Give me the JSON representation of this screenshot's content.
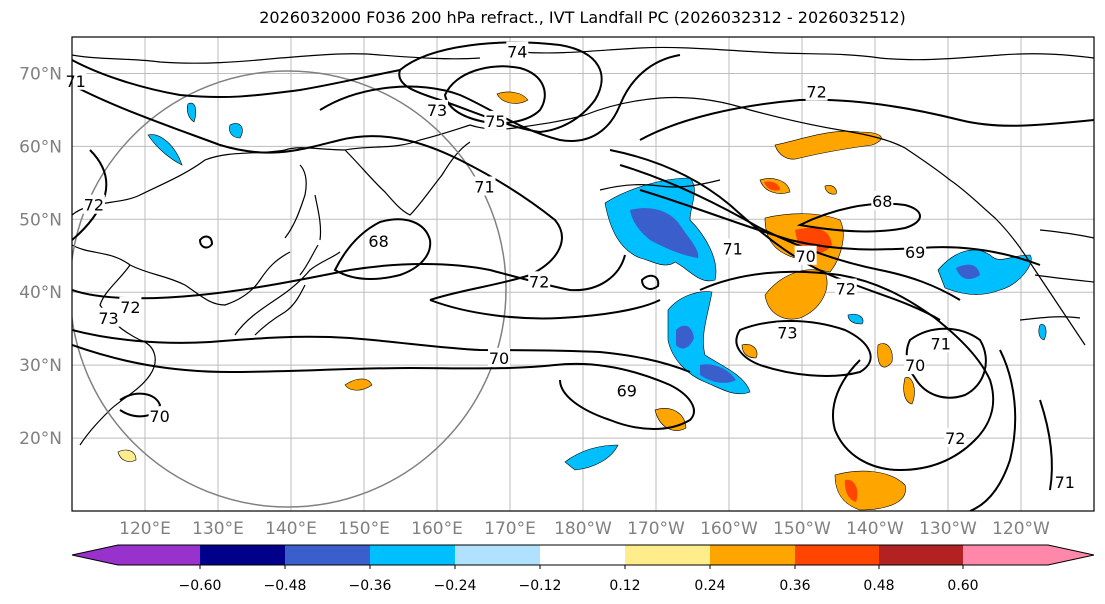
{
  "title": "2026032000 F036 200 hPa refract., IVT Landfall PC (2026032312 - 2026032512)",
  "map": {
    "projection": "equirectangular",
    "extent": {
      "lon_min": 110,
      "lon_max": 250,
      "lat_min": 10,
      "lat_max": 75
    },
    "lat_ticks": [
      {
        "value": 70,
        "label": "70°N"
      },
      {
        "value": 60,
        "label": "60°N"
      },
      {
        "value": 50,
        "label": "50°N"
      },
      {
        "value": 40,
        "label": "40°N"
      },
      {
        "value": 30,
        "label": "30°N"
      },
      {
        "value": 20,
        "label": "20°N"
      }
    ],
    "lon_ticks": [
      {
        "value": 120,
        "label": "120°E"
      },
      {
        "value": 130,
        "label": "130°E"
      },
      {
        "value": 140,
        "label": "140°E"
      },
      {
        "value": 150,
        "label": "150°E"
      },
      {
        "value": 160,
        "label": "160°E"
      },
      {
        "value": 170,
        "label": "170°E"
      },
      {
        "value": 180,
        "label": "180°W"
      },
      {
        "value": 190,
        "label": "170°W"
      },
      {
        "value": 200,
        "label": "160°W"
      },
      {
        "value": 210,
        "label": "150°W"
      },
      {
        "value": 220,
        "label": "140°W"
      },
      {
        "value": 230,
        "label": "130°W"
      },
      {
        "value": 240,
        "label": "120°W"
      }
    ],
    "contour_labels": [
      {
        "text": "74",
        "lon": 171,
        "lat": 73
      },
      {
        "text": "72",
        "lon": 212,
        "lat": 67.5
      },
      {
        "text": "75",
        "lon": 168,
        "lat": 63.5
      },
      {
        "text": "73",
        "lon": 160,
        "lat": 65
      },
      {
        "text": "71",
        "lon": 110.5,
        "lat": 69
      },
      {
        "text": "71",
        "lon": 166.5,
        "lat": 54.5
      },
      {
        "text": "72",
        "lon": 113,
        "lat": 52
      },
      {
        "text": "68",
        "lon": 152,
        "lat": 47
      },
      {
        "text": "68",
        "lon": 221,
        "lat": 52.5
      },
      {
        "text": "69",
        "lon": 225.5,
        "lat": 45.5
      },
      {
        "text": "71",
        "lon": 200.5,
        "lat": 46
      },
      {
        "text": "70",
        "lon": 210.5,
        "lat": 45
      },
      {
        "text": "72",
        "lon": 174,
        "lat": 41.5
      },
      {
        "text": "72",
        "lon": 216,
        "lat": 40.5
      },
      {
        "text": "73",
        "lon": 115,
        "lat": 36.5
      },
      {
        "text": "72",
        "lon": 118,
        "lat": 38
      },
      {
        "text": "73",
        "lon": 208,
        "lat": 34.5
      },
      {
        "text": "70",
        "lon": 168.5,
        "lat": 31
      },
      {
        "text": "69",
        "lon": 186,
        "lat": 26.5
      },
      {
        "text": "70",
        "lon": 122,
        "lat": 23
      },
      {
        "text": "70",
        "lon": 225.5,
        "lat": 30
      },
      {
        "text": "71",
        "lon": 229,
        "lat": 33
      },
      {
        "text": "72",
        "lon": 231,
        "lat": 20
      },
      {
        "text": "71",
        "lon": 246,
        "lat": 14
      }
    ]
  },
  "colorbar": {
    "ticks": [
      "−0.60",
      "−0.48",
      "−0.36",
      "−0.24",
      "−0.12",
      "0.12",
      "0.24",
      "0.36",
      "0.48",
      "0.60"
    ],
    "colors": {
      "under": "#9932cc",
      "bins": [
        "#00008b",
        "#3a5fcd",
        "#00bfff",
        "#b0e2ff",
        "#ffffff",
        "#ffec8b",
        "#ffa500",
        "#ff4500",
        "#b22222"
      ],
      "over": "#ff88aa"
    }
  }
}
